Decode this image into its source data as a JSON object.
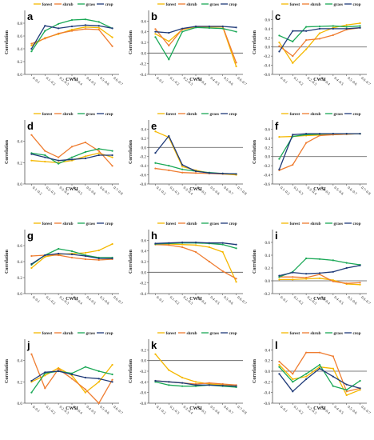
{
  "colors": {
    "forest": "#f5b800",
    "shrub": "#ef7d31",
    "grass": "#1aa856",
    "crop": "#1f3a78"
  },
  "chart_data": [
    {
      "type": "line",
      "panel_label": "a",
      "title": "",
      "xlabel": "CWSI",
      "ylabel": "Correlation",
      "categories": [
        "0–0.1",
        "0.1–0.2",
        "0.2–0.3",
        "0.3–0.4",
        "0.4–0.5",
        "0.5–0.6",
        "0.6–0.7"
      ],
      "ylim": [
        0,
        1
      ],
      "yticks": [
        0,
        0.2,
        0.4,
        0.6,
        0.8
      ],
      "y_decimals": 1,
      "zero_line": false,
      "series": [
        {
          "name": "forest",
          "values": [
            0.45,
            0.57,
            0.63,
            0.7,
            0.74,
            0.73,
            0.58
          ]
        },
        {
          "name": "shrub",
          "values": [
            0.48,
            0.56,
            0.64,
            0.68,
            0.71,
            0.7,
            0.44
          ]
        },
        {
          "name": "grass",
          "values": [
            0.36,
            0.68,
            0.79,
            0.85,
            0.86,
            0.82,
            0.72
          ]
        },
        {
          "name": "crop",
          "values": [
            0.4,
            0.76,
            0.72,
            0.75,
            0.77,
            0.76,
            0.72
          ]
        }
      ]
    },
    {
      "type": "line",
      "panel_label": "b",
      "title": "",
      "xlabel": "CWSI",
      "ylabel": "Correlation",
      "categories": [
        "0–0.1",
        "0.1–0.2",
        "0.2–0.3",
        "0.3–0.4",
        "0.4–0.5",
        "0.5–0.6",
        "0.6–0.7"
      ],
      "ylim": [
        -0.4,
        0.8
      ],
      "yticks": [
        -0.4,
        -0.2,
        0,
        0.2,
        0.4,
        0.6
      ],
      "y_decimals": 1,
      "zero_line": true,
      "series": [
        {
          "name": "forest",
          "values": [
            0.36,
            0.22,
            0.44,
            0.49,
            0.49,
            0.49,
            -0.25
          ]
        },
        {
          "name": "shrub",
          "values": [
            0.45,
            0.14,
            0.45,
            0.5,
            0.5,
            0.5,
            -0.18
          ]
        },
        {
          "name": "grass",
          "values": [
            0.3,
            -0.12,
            0.4,
            0.48,
            0.47,
            0.46,
            0.4
          ]
        },
        {
          "name": "crop",
          "values": [
            0.4,
            0.38,
            0.46,
            0.5,
            0.5,
            0.5,
            0.48
          ]
        }
      ]
    },
    {
      "type": "line",
      "panel_label": "c",
      "title": "",
      "xlabel": "CWSI",
      "ylabel": "Correlation",
      "categories": [
        "0–0.1",
        "0.1–0.2",
        "0.2–0.3",
        "0.3–0.4",
        "0.4–0.5",
        "0.5–0.6",
        "0.6–0.7"
      ],
      "ylim": [
        -0.6,
        0.8
      ],
      "yticks": [
        -0.6,
        -0.4,
        -0.2,
        0,
        0.2,
        0.4,
        0.6
      ],
      "y_decimals": 1,
      "zero_line": true,
      "series": [
        {
          "name": "forest",
          "values": [
            0.1,
            -0.35,
            -0.05,
            0.3,
            0.42,
            0.48,
            0.52
          ]
        },
        {
          "name": "shrub",
          "values": [
            0.02,
            -0.2,
            0.15,
            0.18,
            0.26,
            0.38,
            0.42
          ]
        },
        {
          "name": "grass",
          "values": [
            0.25,
            0.12,
            0.44,
            0.45,
            0.46,
            0.44,
            0.46
          ]
        },
        {
          "name": "crop",
          "values": [
            -0.1,
            0.35,
            0.35,
            0.4,
            0.4,
            0.4,
            0.42
          ]
        }
      ]
    },
    {
      "type": "line",
      "panel_label": "d",
      "title": "",
      "xlabel": "CWSI",
      "ylabel": "Correlation",
      "categories": [
        "0.1–0.2",
        "0.2–0.3",
        "0.3–0.4",
        "0.4–0.5",
        "0.5–0.6",
        "0.6–0.7",
        "0.7–0.8"
      ],
      "ylim": [
        0,
        0.6
      ],
      "yticks": [
        0,
        0.2,
        0.4
      ],
      "y_decimals": 1,
      "zero_line": false,
      "series": [
        {
          "name": "forest",
          "values": [
            0.22,
            0.21,
            0.2,
            0.22,
            0.26,
            0.29,
            0.25
          ]
        },
        {
          "name": "shrub",
          "values": [
            0.46,
            0.31,
            0.25,
            0.35,
            0.39,
            0.31,
            0.17
          ]
        },
        {
          "name": "grass",
          "values": [
            0.29,
            0.27,
            0.19,
            0.25,
            0.3,
            0.33,
            0.31
          ]
        },
        {
          "name": "crop",
          "values": [
            0.28,
            0.25,
            0.22,
            0.23,
            0.24,
            0.27,
            0.27
          ]
        }
      ]
    },
    {
      "type": "line",
      "panel_label": "e",
      "title": "",
      "xlabel": "CWSI",
      "ylabel": "Correlation",
      "categories": [
        "0.1–0.2",
        "0.2–0.3",
        "0.3–0.4",
        "0.4–0.5",
        "0.5–0.6",
        "0.6–0.7",
        "0.7–0.8"
      ],
      "ylim": [
        -0.8,
        0.6
      ],
      "yticks": [
        -0.8,
        -0.6,
        -0.4,
        -0.2,
        0,
        0.2,
        0.4
      ],
      "y_decimals": 1,
      "zero_line": true,
      "series": [
        {
          "name": "forest",
          "values": [
            0.35,
            0.22,
            -0.42,
            -0.5,
            -0.56,
            -0.58,
            -0.6
          ]
        },
        {
          "name": "shrub",
          "values": [
            -0.46,
            -0.5,
            -0.55,
            -0.56,
            -0.57,
            -0.58,
            -0.58
          ]
        },
        {
          "name": "grass",
          "values": [
            -0.34,
            -0.4,
            -0.48,
            -0.52,
            -0.55,
            -0.57,
            -0.58
          ]
        },
        {
          "name": "crop",
          "values": [
            -0.12,
            0.25,
            -0.38,
            -0.52,
            -0.56,
            -0.57,
            -0.58
          ]
        }
      ]
    },
    {
      "type": "line",
      "panel_label": "f",
      "title": "",
      "xlabel": "CWSI",
      "ylabel": "Correlation",
      "categories": [
        "0.1–0.2",
        "0.2–0.3",
        "0.3–0.4",
        "0.4–0.5",
        "0.5–0.6",
        "0.6–0.7",
        "0.7–0.8"
      ],
      "ylim": [
        -0.6,
        0.8
      ],
      "yticks": [
        -0.6,
        -0.4,
        -0.2,
        0,
        0.2,
        0.4,
        0.6
      ],
      "y_decimals": 1,
      "zero_line": true,
      "series": [
        {
          "name": "forest",
          "values": [
            0.43,
            0.44,
            0.46,
            0.47,
            0.48,
            0.49,
            0.5
          ]
        },
        {
          "name": "shrub",
          "values": [
            -0.3,
            -0.18,
            0.3,
            0.46,
            0.48,
            0.49,
            0.5
          ]
        },
        {
          "name": "grass",
          "values": [
            -0.05,
            0.44,
            0.48,
            0.49,
            0.5,
            0.5,
            0.5
          ]
        },
        {
          "name": "crop",
          "values": [
            -0.28,
            0.48,
            0.5,
            0.5,
            0.5,
            0.5,
            0.5
          ]
        }
      ]
    },
    {
      "type": "line",
      "panel_label": "g",
      "title": "",
      "xlabel": "CWSI",
      "ylabel": "Correlation",
      "categories": [
        "0–0.1",
        "0.1–0.2",
        "0.2–0.3",
        "0.3–0.4",
        "0.4–0.5",
        "0.5–0.6",
        "0.6–0.7"
      ],
      "ylim": [
        0,
        0.8
      ],
      "yticks": [
        0,
        0.2,
        0.4,
        0.6
      ],
      "y_decimals": 1,
      "zero_line": false,
      "series": [
        {
          "name": "forest",
          "values": [
            0.32,
            0.46,
            0.49,
            0.5,
            0.51,
            0.54,
            0.62
          ]
        },
        {
          "name": "shrub",
          "values": [
            0.47,
            0.48,
            0.48,
            0.45,
            0.43,
            0.42,
            0.43
          ]
        },
        {
          "name": "grass",
          "values": [
            0.36,
            0.48,
            0.56,
            0.53,
            0.48,
            0.45,
            0.45
          ]
        },
        {
          "name": "crop",
          "values": [
            0.37,
            0.48,
            0.5,
            0.49,
            0.47,
            0.44,
            0.44
          ]
        }
      ]
    },
    {
      "type": "line",
      "panel_label": "h",
      "title": "",
      "xlabel": "CWSI",
      "ylabel": "Correlation",
      "categories": [
        "0–0.1",
        "0.1–0.2",
        "0.2–0.3",
        "0.3–0.4",
        "0.4–0.5",
        "0.5–0.6",
        "0.6–0.7"
      ],
      "ylim": [
        -0.4,
        0.8
      ],
      "yticks": [
        -0.4,
        -0.2,
        0,
        0.2,
        0.4,
        0.6
      ],
      "y_decimals": 1,
      "zero_line": true,
      "series": [
        {
          "name": "forest",
          "values": [
            0.52,
            0.53,
            0.52,
            0.51,
            0.47,
            0.38,
            -0.18
          ]
        },
        {
          "name": "shrub",
          "values": [
            0.52,
            0.51,
            0.47,
            0.38,
            0.2,
            0.02,
            -0.12
          ]
        },
        {
          "name": "grass",
          "values": [
            0.53,
            0.54,
            0.55,
            0.55,
            0.54,
            0.52,
            0.45
          ]
        },
        {
          "name": "crop",
          "values": [
            0.54,
            0.55,
            0.56,
            0.56,
            0.55,
            0.55,
            0.52
          ]
        }
      ]
    },
    {
      "type": "line",
      "panel_label": "i",
      "title": "",
      "xlabel": "CWSI",
      "ylabel": "Correlation",
      "categories": [
        "0–0.1",
        "0.1–0.2",
        "0.2–0.3",
        "0.3–0.4",
        "0.4–0.5",
        "0.5–0.6",
        "0.6–0.7"
      ],
      "ylim": [
        -0.2,
        0.8
      ],
      "yticks": [
        -0.2,
        0,
        0.2,
        0.4,
        0.6
      ],
      "y_decimals": 1,
      "zero_line": true,
      "series": [
        {
          "name": "forest",
          "values": [
            0.02,
            0.02,
            0.03,
            0.04,
            0.01,
            -0.05,
            -0.06
          ]
        },
        {
          "name": "shrub",
          "values": [
            0.06,
            0.06,
            0.05,
            0.1,
            -0.01,
            -0.04,
            -0.03
          ]
        },
        {
          "name": "grass",
          "values": [
            0.06,
            0.14,
            0.35,
            0.34,
            0.32,
            0.28,
            0.25
          ]
        },
        {
          "name": "crop",
          "values": [
            0.08,
            0.13,
            0.11,
            0.12,
            0.14,
            0.2,
            0.24
          ]
        }
      ]
    },
    {
      "type": "line",
      "panel_label": "j",
      "title": "",
      "xlabel": "CWSI",
      "ylabel": "Correlation",
      "categories": [
        "0–0.1",
        "0.1–0.2",
        "0.2–0.3",
        "0.3–0.4",
        "0.4–0.5",
        "0.5–0.6",
        "0.6–0.7"
      ],
      "ylim": [
        0,
        0.6
      ],
      "yticks": [
        0,
        0.2,
        0.4
      ],
      "y_decimals": 1,
      "zero_line": false,
      "series": [
        {
          "name": "forest",
          "values": [
            0.2,
            0.26,
            0.33,
            0.26,
            0.1,
            0.2,
            0.36
          ]
        },
        {
          "name": "shrub",
          "values": [
            0.46,
            0.14,
            0.32,
            0.23,
            0.13,
            0.0,
            0.22
          ]
        },
        {
          "name": "grass",
          "values": [
            0.1,
            0.28,
            0.3,
            0.28,
            0.34,
            0.3,
            0.27
          ]
        },
        {
          "name": "crop",
          "values": [
            0.21,
            0.29,
            0.3,
            0.27,
            0.24,
            0.23,
            0.2
          ]
        }
      ]
    },
    {
      "type": "line",
      "panel_label": "k",
      "title": "",
      "xlabel": "CWSI",
      "ylabel": "Correlation",
      "categories": [
        "0.1–0.2",
        "0.2–0.3",
        "0.3–0.4",
        "0.4–0.5",
        "0.5–0.6",
        "0.6–0.7",
        "0.7–0.8"
      ],
      "ylim": [
        -0.8,
        0.4
      ],
      "yticks": [
        -0.8,
        -0.6,
        -0.4,
        -0.2,
        0,
        0.2
      ],
      "y_decimals": 1,
      "zero_line": true,
      "series": [
        {
          "name": "forest",
          "values": [
            0.12,
            -0.18,
            -0.32,
            -0.4,
            -0.44,
            -0.46,
            -0.48
          ]
        },
        {
          "name": "shrub",
          "values": [
            -0.38,
            -0.4,
            -0.42,
            -0.44,
            -0.42,
            -0.44,
            -0.46
          ]
        },
        {
          "name": "grass",
          "values": [
            -0.4,
            -0.46,
            -0.48,
            -0.48,
            -0.46,
            -0.48,
            -0.5
          ]
        },
        {
          "name": "crop",
          "values": [
            -0.38,
            -0.4,
            -0.42,
            -0.46,
            -0.46,
            -0.47,
            -0.48
          ]
        }
      ]
    },
    {
      "type": "line",
      "panel_label": "l",
      "title": "",
      "xlabel": "CWSI",
      "ylabel": "Correlation",
      "categories": [
        "0–0.1",
        "0.1–0.2",
        "0.2–0.3",
        "0.3–0.4",
        "0.4–0.5",
        "0.5–0.6",
        "0.6–0.7"
      ],
      "ylim": [
        -0.6,
        0.6
      ],
      "yticks": [
        -0.6,
        -0.4,
        -0.2,
        0,
        0.2,
        0.4
      ],
      "y_decimals": 1,
      "zero_line": true,
      "series": [
        {
          "name": "forest",
          "values": [
            0.12,
            -0.15,
            -0.1,
            0.08,
            0.05,
            -0.45,
            -0.35
          ]
        },
        {
          "name": "shrub",
          "values": [
            0.18,
            -0.05,
            0.35,
            0.35,
            0.28,
            -0.38,
            -0.32
          ]
        },
        {
          "name": "grass",
          "values": [
            0.08,
            -0.2,
            -0.05,
            0.12,
            -0.28,
            -0.35,
            -0.18
          ]
        },
        {
          "name": "crop",
          "values": [
            -0.05,
            -0.38,
            -0.15,
            0.05,
            -0.1,
            -0.25,
            -0.32
          ]
        }
      ]
    }
  ]
}
